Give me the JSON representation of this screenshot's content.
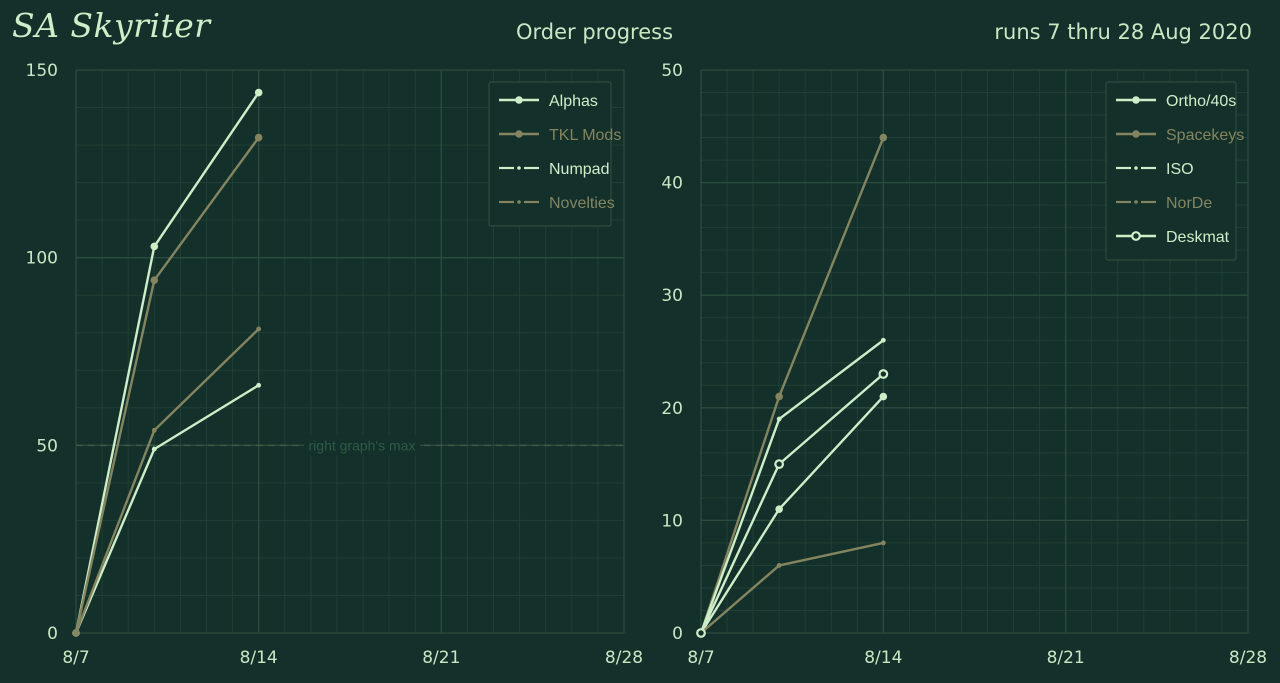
{
  "header": {
    "brand": "SA Skyriter",
    "title": "Order progress",
    "subtitle": "runs 7 thru 28 Aug 2020"
  },
  "colors": {
    "background": "#13302a",
    "grid_major": "#2b4d3f",
    "grid_minor": "#1f4034",
    "light": "#cdeec9",
    "olive": "#848560",
    "text": "#c6e8c3"
  },
  "chart_data": [
    {
      "type": "line",
      "x_ticks": [
        "8/7",
        "8/14",
        "8/21",
        "8/28"
      ],
      "xlim": [
        0,
        21
      ],
      "ylim": [
        0,
        150
      ],
      "y_ticks": [
        0,
        50,
        100,
        150
      ],
      "grid": true,
      "legend_position": "top-right",
      "annotation": {
        "text": "right graph's max",
        "y": 50
      },
      "series": [
        {
          "name": "Alphas",
          "x": [
            0,
            3,
            7
          ],
          "values": [
            0,
            103,
            144
          ],
          "color": "#cdeec9",
          "marker": "dot",
          "style": "solid"
        },
        {
          "name": "TKL Mods",
          "x": [
            0,
            3,
            7
          ],
          "values": [
            0,
            94,
            132
          ],
          "color": "#848560",
          "marker": "dot",
          "style": "solid"
        },
        {
          "name": "Numpad",
          "x": [
            0,
            3,
            7
          ],
          "values": [
            0,
            49,
            66
          ],
          "color": "#cdeec9",
          "marker": "small",
          "style": "dashdot"
        },
        {
          "name": "Novelties",
          "x": [
            0,
            3,
            7
          ],
          "values": [
            0,
            54,
            81
          ],
          "color": "#848560",
          "marker": "small",
          "style": "dashdot"
        }
      ]
    },
    {
      "type": "line",
      "x_ticks": [
        "8/7",
        "8/14",
        "8/21",
        "8/28"
      ],
      "xlim": [
        0,
        21
      ],
      "ylim": [
        0,
        50
      ],
      "y_ticks": [
        0,
        10,
        20,
        30,
        40,
        50
      ],
      "grid": true,
      "legend_position": "top-right",
      "series": [
        {
          "name": "Ortho/40s",
          "x": [
            0,
            3,
            7
          ],
          "values": [
            0,
            11,
            21
          ],
          "color": "#cdeec9",
          "marker": "dot",
          "style": "solid"
        },
        {
          "name": "Spacekeys",
          "x": [
            0,
            3,
            7
          ],
          "values": [
            0,
            21,
            44
          ],
          "color": "#848560",
          "marker": "dot",
          "style": "solid"
        },
        {
          "name": "ISO",
          "x": [
            0,
            3,
            7
          ],
          "values": [
            0,
            19,
            26
          ],
          "color": "#cdeec9",
          "marker": "small",
          "style": "dashdot"
        },
        {
          "name": "NorDe",
          "x": [
            0,
            3,
            7
          ],
          "values": [
            0,
            6,
            8
          ],
          "color": "#848560",
          "marker": "small",
          "style": "dashdot"
        },
        {
          "name": "Deskmat",
          "x": [
            0,
            3,
            7
          ],
          "values": [
            0,
            15,
            23
          ],
          "color": "#cdeec9",
          "marker": "ring",
          "style": "solid"
        }
      ]
    }
  ]
}
